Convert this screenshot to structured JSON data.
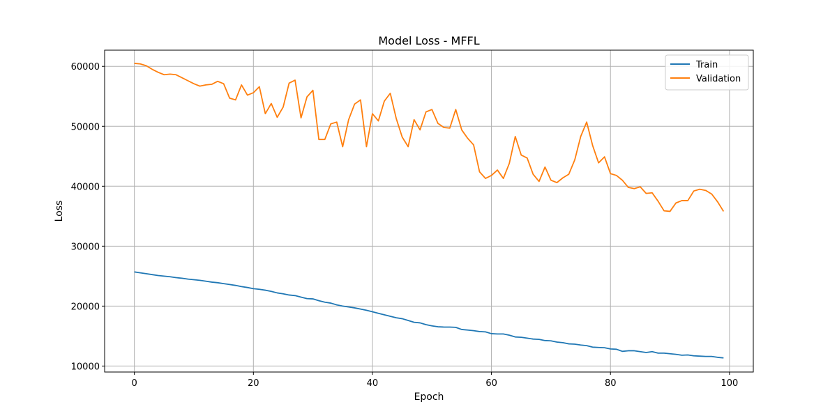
{
  "chart_data": {
    "type": "line",
    "title": "Model Loss - MFFL",
    "xlabel": "Epoch",
    "ylabel": "Loss",
    "xlim": [
      -5,
      104
    ],
    "ylim": [
      9000,
      62700
    ],
    "xticks": [
      0,
      20,
      40,
      60,
      80,
      100
    ],
    "yticks": [
      10000,
      20000,
      30000,
      40000,
      50000,
      60000
    ],
    "grid": true,
    "legend_position": "upper right",
    "series": [
      {
        "name": "Train",
        "color": "#1f77b4",
        "values": [
          25700,
          25550,
          25400,
          25250,
          25100,
          25000,
          24900,
          24750,
          24650,
          24500,
          24400,
          24300,
          24150,
          24000,
          23900,
          23750,
          23600,
          23450,
          23250,
          23100,
          22900,
          22800,
          22650,
          22450,
          22200,
          22050,
          21850,
          21750,
          21500,
          21250,
          21200,
          20900,
          20650,
          20500,
          20200,
          20000,
          19850,
          19700,
          19500,
          19300,
          19050,
          18800,
          18550,
          18300,
          18050,
          17900,
          17600,
          17300,
          17200,
          16900,
          16700,
          16550,
          16500,
          16500,
          16450,
          16100,
          16000,
          15900,
          15750,
          15700,
          15400,
          15350,
          15350,
          15150,
          14850,
          14800,
          14650,
          14500,
          14450,
          14250,
          14200,
          14000,
          13900,
          13700,
          13650,
          13500,
          13400,
          13150,
          13100,
          13050,
          12850,
          12800,
          12450,
          12550,
          12550,
          12400,
          12250,
          12400,
          12150,
          12150,
          12050,
          11950,
          11800,
          11850,
          11700,
          11650,
          11600,
          11600,
          11450,
          11350
        ]
      },
      {
        "name": "Validation",
        "color": "#ff7f0e",
        "values": [
          60500,
          60400,
          60100,
          59500,
          59000,
          58600,
          58700,
          58600,
          58100,
          57600,
          57100,
          56700,
          56900,
          57000,
          57500,
          57100,
          54700,
          54400,
          56900,
          55200,
          55600,
          56600,
          52100,
          53800,
          51500,
          53200,
          57200,
          57700,
          51400,
          54900,
          56000,
          47800,
          47800,
          50400,
          50700,
          46600,
          51100,
          53700,
          54400,
          46600,
          52100,
          50900,
          54200,
          55500,
          51300,
          48200,
          46600,
          51100,
          49400,
          52400,
          52800,
          50500,
          49800,
          49700,
          52800,
          49400,
          48000,
          46900,
          42400,
          41300,
          41800,
          42700,
          41300,
          43800,
          48300,
          45200,
          44700,
          42000,
          40800,
          43200,
          41000,
          40600,
          41400,
          42000,
          44400,
          48300,
          50700,
          46800,
          43900,
          44900,
          42100,
          41800,
          41000,
          39800,
          39600,
          39900,
          38800,
          38900,
          37500,
          35900,
          35800,
          37200,
          37600,
          37600,
          39200,
          39500,
          39300,
          38700,
          37400,
          35800
        ]
      }
    ]
  }
}
